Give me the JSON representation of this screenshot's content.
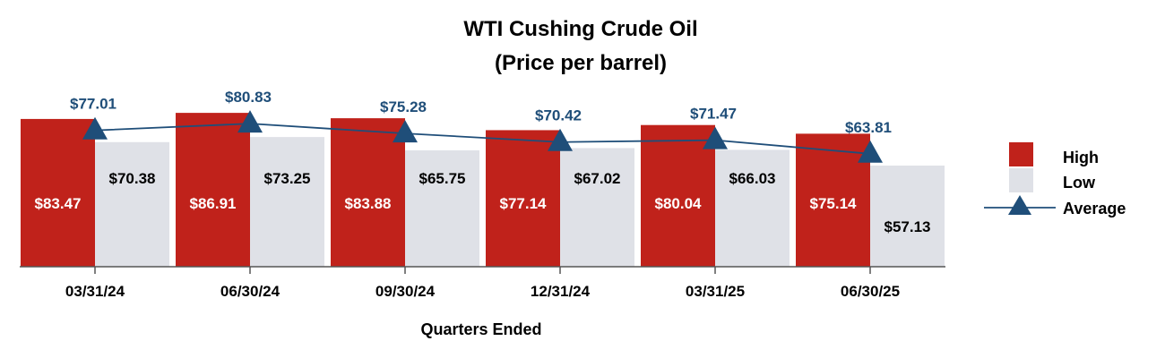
{
  "chart_data": {
    "type": "bar",
    "title": "WTI Cushing Crude Oil",
    "subtitle": "(Price per barrel)",
    "xlabel": "Quarters Ended",
    "ylabel": "",
    "ylim": [
      0,
      90
    ],
    "grid": false,
    "legend_position": "right",
    "categories": [
      "03/31/24",
      "06/30/24",
      "09/30/24",
      "12/31/24",
      "03/31/25",
      "06/30/25"
    ],
    "series": [
      {
        "name": "High",
        "type": "bar",
        "color": "#c0221b",
        "values": [
          83.47,
          86.91,
          83.88,
          77.14,
          80.04,
          75.14
        ],
        "labels": [
          "$83.47",
          "$86.91",
          "$83.88",
          "$77.14",
          "$80.04",
          "$75.14"
        ]
      },
      {
        "name": "Low",
        "type": "bar",
        "color": "#dfe1e7",
        "values": [
          70.38,
          73.25,
          65.75,
          67.02,
          66.03,
          57.13
        ],
        "labels": [
          "$70.38",
          "$73.25",
          "$65.75",
          "$67.02",
          "$66.03",
          "$57.13"
        ]
      },
      {
        "name": "Average",
        "type": "line",
        "marker": "triangle",
        "color": "#1f4e79",
        "values": [
          77.01,
          80.83,
          75.28,
          70.42,
          71.47,
          63.81
        ],
        "labels": [
          "$77.01",
          "$80.83",
          "$75.28",
          "$70.42",
          "$71.47",
          "$63.81"
        ]
      }
    ]
  }
}
